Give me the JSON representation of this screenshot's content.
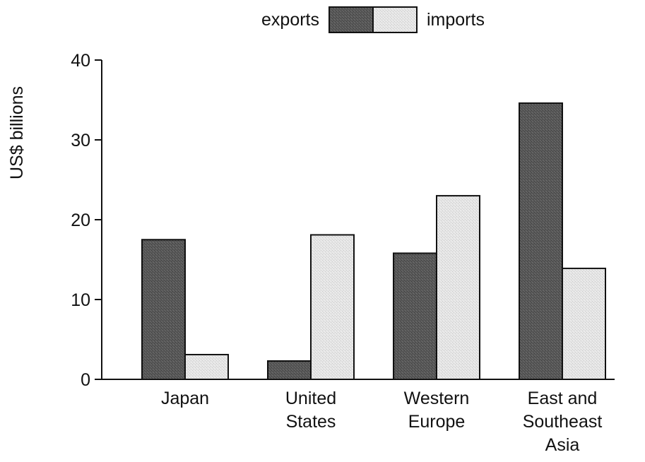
{
  "chart_data": {
    "type": "bar",
    "title": "",
    "xlabel": "",
    "ylabel": "US$ billions",
    "ylim": [
      0,
      40
    ],
    "yticks": [
      0,
      10,
      20,
      30,
      40
    ],
    "grid": false,
    "legend_position": "top-center",
    "categories": [
      [
        "Japan"
      ],
      [
        "United",
        "States"
      ],
      [
        "Western",
        "Europe"
      ],
      [
        "East and",
        "Southeast",
        "Asia"
      ]
    ],
    "series": [
      {
        "name": "exports",
        "values": [
          17.5,
          2.3,
          15.8,
          34.6
        ],
        "color": "#555555"
      },
      {
        "name": "imports",
        "values": [
          3.1,
          18.1,
          23.0,
          13.9
        ],
        "color": "#e3e3e3"
      }
    ]
  }
}
